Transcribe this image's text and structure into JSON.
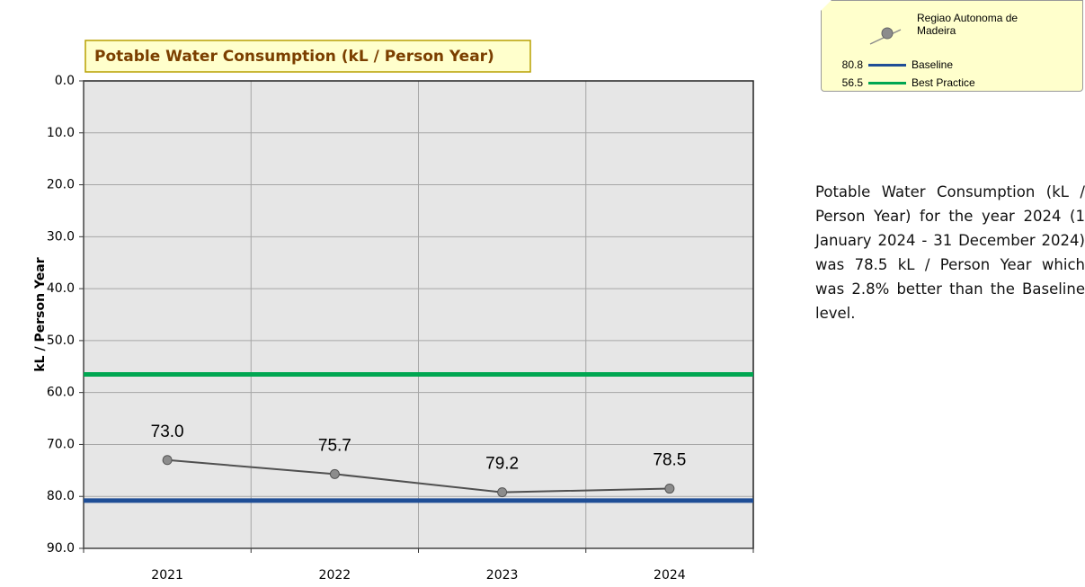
{
  "chart_data": {
    "type": "line",
    "title": "Potable Water Consumption (kL / Person Year)",
    "y_label": "kL / Person Year",
    "categories": [
      "2021",
      "2022",
      "2023",
      "2024"
    ],
    "series": [
      {
        "name": "Regiao Autonoma de Madeira",
        "color": "#505050",
        "marker_color": "#8c8c8c",
        "values": [
          73.0,
          75.7,
          79.2,
          78.5
        ],
        "value_labels": [
          "73.0",
          "75.7",
          "79.2",
          "78.5"
        ]
      }
    ],
    "baselines": [
      {
        "name": "Baseline",
        "value": 80.8,
        "color": "#1f4e96"
      },
      {
        "name": "Best Practice",
        "value": 56.5,
        "color": "#00a651"
      }
    ],
    "ylim": [
      0,
      90
    ],
    "inverted": true,
    "yticks": [
      {
        "value": 0,
        "label": "0.0"
      },
      {
        "value": 10,
        "label": "10.0"
      },
      {
        "value": 20,
        "label": "20.0"
      },
      {
        "value": 30,
        "label": "30.0"
      },
      {
        "value": 40,
        "label": "40.0"
      },
      {
        "value": 50,
        "label": "50.0"
      },
      {
        "value": 60,
        "label": "60.0"
      },
      {
        "value": 70,
        "label": "70.0"
      },
      {
        "value": 80,
        "label": "80.0"
      },
      {
        "value": 90,
        "label": "90.0"
      }
    ],
    "grid": true
  },
  "description": "Potable Water Consumption (kL / Person Year) for the year 2024 (1 January 2024 - 31 December 2024) was 78.5 kL / Person Year which was 2.8% better than the Baseline level."
}
